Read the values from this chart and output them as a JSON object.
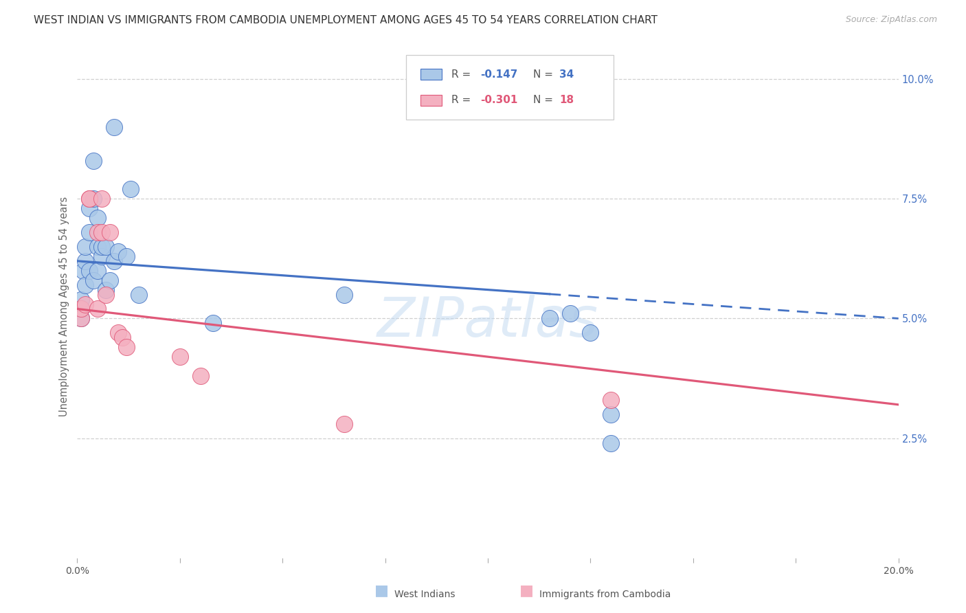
{
  "title": "WEST INDIAN VS IMMIGRANTS FROM CAMBODIA UNEMPLOYMENT AMONG AGES 45 TO 54 YEARS CORRELATION CHART",
  "source": "Source: ZipAtlas.com",
  "ylabel": "Unemployment Among Ages 45 to 54 years",
  "xlim": [
    0.0,
    0.2
  ],
  "ylim": [
    0.0,
    0.105
  ],
  "color_blue": "#aac8e8",
  "color_pink": "#f4b0c0",
  "line_blue": "#4472c4",
  "line_pink": "#e05878",
  "watermark": "ZIPatlas",
  "background_color": "#ffffff",
  "grid_color": "#d0d0d0",
  "blue_line_start": 0.062,
  "blue_line_end": 0.05,
  "blue_line_solid_end_x": 0.115,
  "pink_line_start": 0.052,
  "pink_line_end": 0.032,
  "legend_blue_r": "-0.147",
  "legend_blue_n": "34",
  "legend_pink_r": "-0.301",
  "legend_pink_n": "18",
  "west_indians_x": [
    0.001,
    0.001,
    0.001,
    0.0015,
    0.002,
    0.002,
    0.002,
    0.003,
    0.003,
    0.003,
    0.004,
    0.004,
    0.004,
    0.005,
    0.005,
    0.005,
    0.006,
    0.006,
    0.007,
    0.007,
    0.008,
    0.009,
    0.009,
    0.01,
    0.012,
    0.013,
    0.015,
    0.033,
    0.065,
    0.115,
    0.12,
    0.125,
    0.13,
    0.13
  ],
  "west_indians_y": [
    0.05,
    0.052,
    0.054,
    0.06,
    0.057,
    0.062,
    0.065,
    0.06,
    0.068,
    0.073,
    0.058,
    0.075,
    0.083,
    0.06,
    0.065,
    0.071,
    0.063,
    0.065,
    0.056,
    0.065,
    0.058,
    0.062,
    0.09,
    0.064,
    0.063,
    0.077,
    0.055,
    0.049,
    0.055,
    0.05,
    0.051,
    0.047,
    0.03,
    0.024
  ],
  "cambodia_x": [
    0.001,
    0.001,
    0.002,
    0.003,
    0.003,
    0.005,
    0.005,
    0.006,
    0.006,
    0.007,
    0.008,
    0.01,
    0.011,
    0.012,
    0.025,
    0.03,
    0.065,
    0.13
  ],
  "cambodia_y": [
    0.05,
    0.052,
    0.053,
    0.075,
    0.075,
    0.052,
    0.068,
    0.068,
    0.075,
    0.055,
    0.068,
    0.047,
    0.046,
    0.044,
    0.042,
    0.038,
    0.028,
    0.033
  ]
}
